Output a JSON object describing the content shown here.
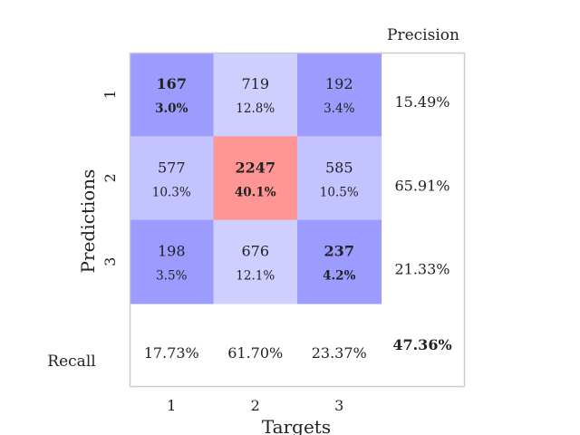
{
  "chart_data": {
    "type": "heatmap",
    "subtype": "confusion-matrix",
    "xlabel": "Targets",
    "ylabel": "Predictions",
    "x_ticks": [
      "1",
      "2",
      "3"
    ],
    "y_ticks": [
      "1",
      "2",
      "3"
    ],
    "precision_header": "Precision",
    "recall_label": "Recall",
    "cells": [
      [
        {
          "count": "167",
          "pct": "3.0%",
          "bold": true,
          "color": "#9c9cff"
        },
        {
          "count": "719",
          "pct": "12.8%",
          "bold": false,
          "color": "#cfcfff"
        },
        {
          "count": "192",
          "pct": "3.4%",
          "bold": false,
          "color": "#9c9cff"
        }
      ],
      [
        {
          "count": "577",
          "pct": "10.3%",
          "bold": false,
          "color": "#c3c3ff"
        },
        {
          "count": "2247",
          "pct": "40.1%",
          "bold": true,
          "color": "#ff9595"
        },
        {
          "count": "585",
          "pct": "10.5%",
          "bold": false,
          "color": "#c3c3ff"
        }
      ],
      [
        {
          "count": "198",
          "pct": "3.5%",
          "bold": false,
          "color": "#9c9cff"
        },
        {
          "count": "676",
          "pct": "12.1%",
          "bold": false,
          "color": "#cfcfff"
        },
        {
          "count": "237",
          "pct": "4.2%",
          "bold": true,
          "color": "#9c9cff"
        }
      ]
    ],
    "precision": [
      "15.49%",
      "65.91%",
      "21.33%"
    ],
    "recall": [
      "17.73%",
      "61.70%",
      "23.37%"
    ],
    "overall_accuracy": "47.36%",
    "colors": {
      "frame": "#cccccc",
      "text": "#222222"
    }
  }
}
